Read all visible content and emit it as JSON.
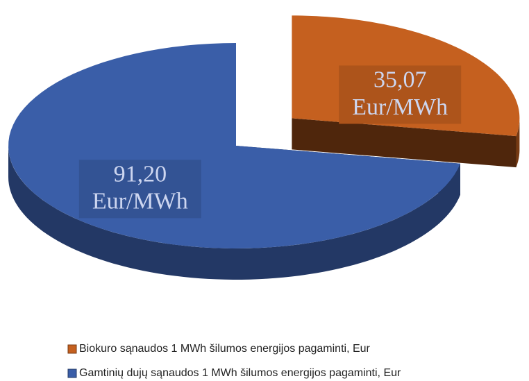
{
  "chart_data": {
    "type": "pie",
    "categories": [
      "Biokuro sąnaudos 1 MWh šilumos energijos pagaminti, Eur",
      "Gamtinių dujų sąnaudos 1 MWh šilumos energijos pagaminti, Eur"
    ],
    "values": [
      35.07,
      91.2
    ],
    "value_labels": [
      "35,07 Eur/MWh",
      "91,20 Eur/MWh"
    ],
    "colors": [
      "#c5601f",
      "#3a5ea8"
    ]
  }
}
